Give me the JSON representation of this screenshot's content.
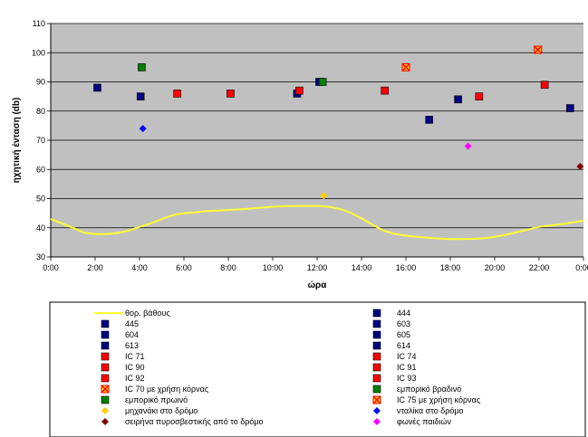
{
  "chart_data": {
    "type": "scatter",
    "xlabel": "ώρα",
    "ylabel": "ηχητική ένταση (db)",
    "ylim": [
      30,
      110
    ],
    "yticks": [
      30,
      40,
      50,
      60,
      70,
      80,
      90,
      100,
      110
    ],
    "xlim": [
      0,
      24
    ],
    "xticks": [
      "0:00",
      "2:00",
      "4:00",
      "6:00",
      "8:00",
      "10:00",
      "12:00",
      "14:00",
      "16:00",
      "18:00",
      "20:00",
      "22:00",
      "0:00"
    ],
    "grid": true,
    "legend_position": "bottom",
    "plot_bg": "#c0c0c0",
    "background_line": {
      "name": "θορ. βάθους",
      "color": "#ffff33",
      "x": [
        0,
        0.5,
        1,
        1.5,
        2,
        2.5,
        3,
        3.5,
        4,
        4.5,
        5,
        5.5,
        6,
        6.5,
        7,
        7.5,
        8,
        8.5,
        9,
        9.5,
        10,
        10.5,
        11,
        11.5,
        12,
        12.5,
        13,
        13.5,
        14,
        14.5,
        15,
        15.5,
        16,
        16.5,
        17,
        17.5,
        18,
        18.5,
        19,
        19.5,
        20,
        20.5,
        21,
        21.5,
        22,
        22.5,
        23,
        23.5,
        24
      ],
      "y": [
        43,
        41.5,
        40,
        38.3,
        37.8,
        37.8,
        38.2,
        39,
        40.3,
        41.5,
        43,
        44.3,
        45,
        45.3,
        45.7,
        45.9,
        46.1,
        46.3,
        46.6,
        46.9,
        47.2,
        47.4,
        47.5,
        47.5,
        47.5,
        47.2,
        46.5,
        45.2,
        43.2,
        41,
        39,
        37.9,
        37.3,
        36.9,
        36.6,
        36.3,
        36.1,
        36.1,
        36.2,
        36.4,
        36.9,
        37.6,
        38.5,
        39.4,
        40.3,
        40.8,
        41.2,
        41.8,
        42.4
      ]
    },
    "series": [
      {
        "name": "444",
        "marker": "square",
        "color": "#000080",
        "points": [
          [
            11.1,
            86
          ]
        ]
      },
      {
        "name": "445",
        "marker": "square",
        "color": "#000080",
        "points": [
          [
            2.1,
            88
          ]
        ]
      },
      {
        "name": "603",
        "marker": "square",
        "color": "#000080",
        "points": [
          [
            4.05,
            85
          ]
        ]
      },
      {
        "name": "604",
        "marker": "square",
        "color": "#000080",
        "points": [
          [
            12.1,
            90
          ]
        ]
      },
      {
        "name": "605",
        "marker": "square",
        "color": "#000080",
        "points": [
          [
            17.05,
            77
          ]
        ]
      },
      {
        "name": "613",
        "marker": "square",
        "color": "#000080",
        "points": [
          [
            18.35,
            84
          ]
        ]
      },
      {
        "name": "614",
        "marker": "square",
        "color": "#000080",
        "points": [
          [
            23.4,
            81
          ]
        ]
      },
      {
        "name": "IC 71",
        "marker": "square",
        "color": "#ff0000",
        "points": [
          [
            5.7,
            86
          ]
        ]
      },
      {
        "name": "IC 74",
        "marker": "square",
        "color": "#ff0000",
        "points": [
          [
            8.1,
            86
          ]
        ]
      },
      {
        "name": "IC 90",
        "marker": "square",
        "color": "#ff0000",
        "points": [
          [
            11.2,
            87
          ]
        ]
      },
      {
        "name": "IC 91",
        "marker": "square",
        "color": "#ff0000",
        "points": [
          [
            15.05,
            87
          ]
        ]
      },
      {
        "name": "IC 92",
        "marker": "square",
        "color": "#ff0000",
        "points": [
          [
            19.3,
            85
          ]
        ]
      },
      {
        "name": "IC 93",
        "marker": "square",
        "color": "#ff0000",
        "points": [
          [
            22.25,
            89
          ]
        ]
      },
      {
        "name": "IC 70 με χρήση κόρνας",
        "marker": "x-square",
        "color": "#ff0000",
        "points": [
          [
            16.0,
            95
          ]
        ]
      },
      {
        "name": "εμπορικό βραδινό",
        "marker": "square",
        "color": "#008000",
        "points": [
          [
            12.25,
            90
          ]
        ]
      },
      {
        "name": "εμπορικό πρωινό",
        "marker": "square",
        "color": "#008000",
        "points": [
          [
            4.1,
            95
          ]
        ]
      },
      {
        "name": "IC 75 με χρήση κόρνας",
        "marker": "x-square",
        "color": "#ff0000",
        "points": [
          [
            21.95,
            101
          ]
        ]
      },
      {
        "name": "μηχανάκι στο δρόμο",
        "marker": "diamond",
        "color": "#ffcc00",
        "points": [
          [
            12.3,
            51
          ]
        ]
      },
      {
        "name": "νταλίκα στο δρόμο",
        "marker": "diamond",
        "color": "#0000ff",
        "points": [
          [
            4.15,
            74
          ]
        ]
      },
      {
        "name": "σειρήνα πυροσβεστικής από το δρόμο",
        "marker": "diamond",
        "color": "#800000",
        "points": [
          [
            23.85,
            61
          ]
        ]
      },
      {
        "name": "φωνές παιδιών",
        "marker": "diamond",
        "color": "#ff00ff",
        "points": [
          [
            18.8,
            68
          ]
        ]
      }
    ],
    "legend_left": [
      "θορ. βάθους",
      "445",
      "604",
      "613",
      "IC 71",
      "IC 90",
      "IC 92",
      "IC 70 με χρήση κόρνας",
      "εμπορικό πρωινό",
      "μηχανάκι στο δρόμο",
      "σειρήνα πυροσβεστικής από το δρόμο"
    ],
    "legend_right": [
      "444",
      "603",
      "605",
      "614",
      "IC 74",
      "IC 91",
      "IC 93",
      "εμπορικό βραδινό",
      "IC 75 με χρήση κόρνας",
      "νταλίκα στο δρόμο",
      "φωνές παιδιών"
    ]
  }
}
